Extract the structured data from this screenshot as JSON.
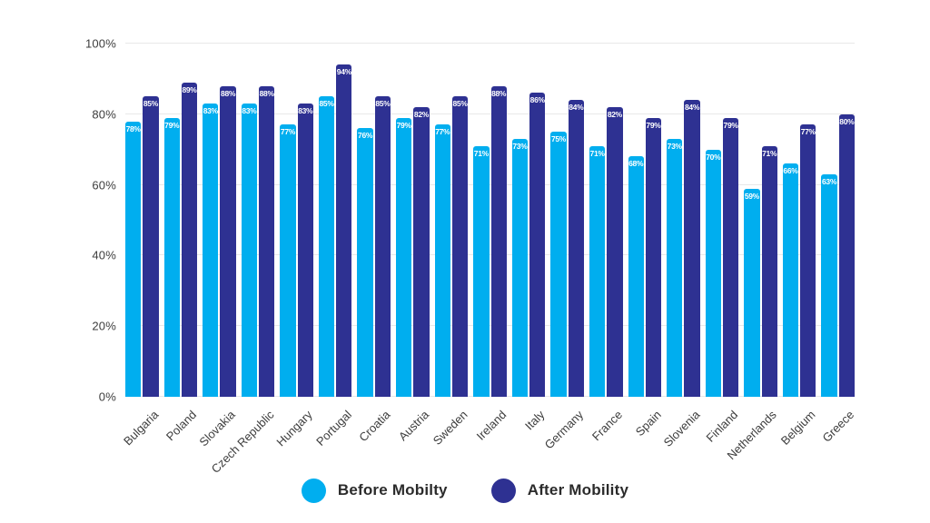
{
  "chart_data": {
    "type": "bar",
    "title": "",
    "categories": [
      "Bulgaria",
      "Poland",
      "Slovakia",
      "Czech Republic",
      "Hungary",
      "Portugal",
      "Croatia",
      "Austria",
      "Sweden",
      "Ireland",
      "Italy",
      "Germany",
      "France",
      "Spain",
      "Slovenia",
      "Finland",
      "Netherlands",
      "Belgium",
      "Greece"
    ],
    "series": [
      {
        "name": "Before Mobilty",
        "color": "#00AEEF",
        "values": [
          78,
          79,
          83,
          83,
          77,
          85,
          76,
          79,
          77,
          71,
          73,
          75,
          71,
          68,
          73,
          70,
          59,
          66,
          63
        ]
      },
      {
        "name": "After Mobility",
        "color": "#2E3192",
        "values": [
          85,
          89,
          88,
          88,
          83,
          94,
          85,
          82,
          85,
          88,
          86,
          84,
          82,
          79,
          84,
          79,
          71,
          77,
          80
        ]
      }
    ],
    "value_label_suffix": "%",
    "ylim": [
      0,
      100
    ],
    "yticks": [
      0,
      20,
      40,
      60,
      80,
      100
    ],
    "ytick_suffix": "%",
    "grid": true,
    "legend_position": "bottom",
    "value_labels": "inside-top"
  },
  "colors": {
    "before_series": "#00AEEF",
    "after_series": "#2E3192",
    "gridline": "#e8e8e8",
    "axis_text": "#3d3d3d",
    "value_label_text": "#ffffff"
  }
}
